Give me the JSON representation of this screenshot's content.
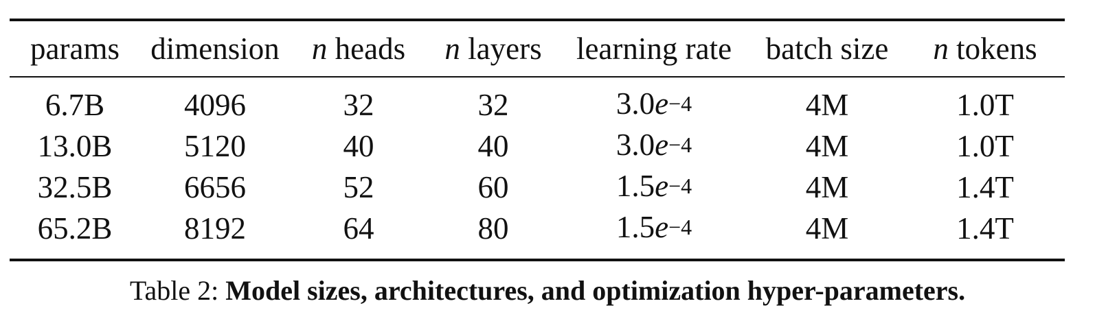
{
  "table": {
    "headers": [
      {
        "prefix": "",
        "text": "params"
      },
      {
        "prefix": "",
        "text": "dimension"
      },
      {
        "prefix": "n",
        "text": " heads"
      },
      {
        "prefix": "n",
        "text": " layers"
      },
      {
        "prefix": "",
        "text": "learning rate"
      },
      {
        "prefix": "",
        "text": "batch size"
      },
      {
        "prefix": "n",
        "text": " tokens"
      }
    ],
    "rows": [
      {
        "params": "6.7B",
        "dimension": "4096",
        "heads": "32",
        "layers": "32",
        "lr_mantissa": "3.0",
        "lr_base": "e",
        "lr_exp": "−4",
        "batch": "4M",
        "tokens": "1.0T"
      },
      {
        "params": "13.0B",
        "dimension": "5120",
        "heads": "40",
        "layers": "40",
        "lr_mantissa": "3.0",
        "lr_base": "e",
        "lr_exp": "−4",
        "batch": "4M",
        "tokens": "1.0T"
      },
      {
        "params": "32.5B",
        "dimension": "6656",
        "heads": "52",
        "layers": "60",
        "lr_mantissa": "1.5",
        "lr_base": "e",
        "lr_exp": "−4",
        "batch": "4M",
        "tokens": "1.4T"
      },
      {
        "params": "65.2B",
        "dimension": "8192",
        "heads": "64",
        "layers": "80",
        "lr_mantissa": "1.5",
        "lr_base": "e",
        "lr_exp": "−4",
        "batch": "4M",
        "tokens": "1.4T"
      }
    ]
  },
  "caption": {
    "label": "Table 2: ",
    "text": "Model sizes, architectures, and optimization hyper-parameters."
  }
}
